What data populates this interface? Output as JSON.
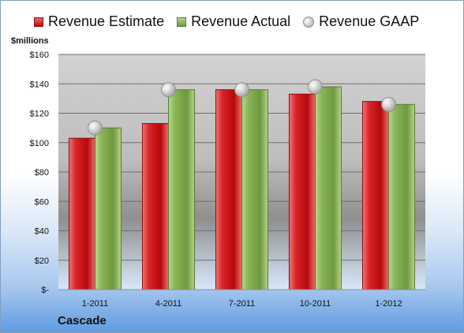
{
  "chart_data": {
    "type": "bar",
    "categories": [
      "1-2011",
      "4-2011",
      "7-2011",
      "10-2011",
      "1-2012"
    ],
    "series": [
      {
        "name": "Revenue Estimate",
        "type": "bar",
        "color": "#c8191c",
        "values": [
          103,
          113,
          136,
          133,
          128
        ]
      },
      {
        "name": "Revenue Actual",
        "type": "bar",
        "color": "#7faa4d",
        "values": [
          110,
          136,
          136,
          138,
          126
        ]
      },
      {
        "name": "Revenue GAAP",
        "type": "scatter",
        "color": "#bfbfbf",
        "values": [
          110,
          136,
          136,
          138,
          126
        ]
      }
    ],
    "y_ticks": [
      "$-",
      "$20",
      "$40",
      "$60",
      "$80",
      "$100",
      "$120",
      "$140",
      "$160"
    ],
    "ylabel": "$millions",
    "xlabel": "",
    "footer_label": "Cascade",
    "ylim": [
      0,
      160
    ],
    "grid": true,
    "legend_position": "top"
  }
}
